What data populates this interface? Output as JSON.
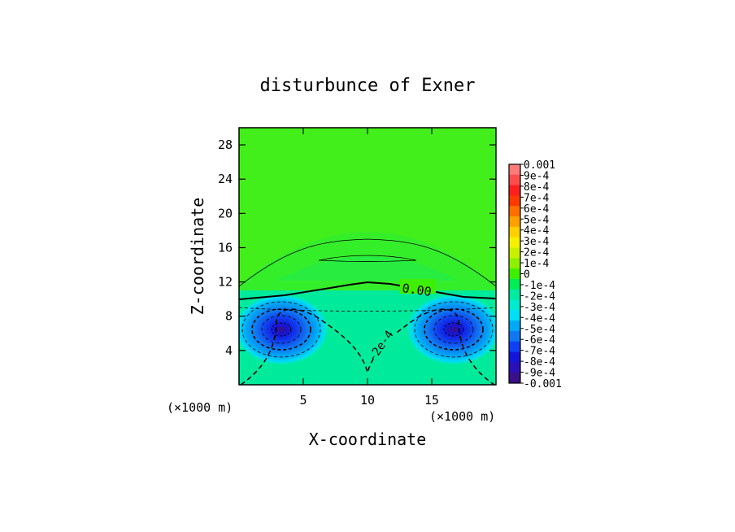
{
  "chart_data": {
    "type": "heatmap",
    "title": "disturbunce of Exner",
    "xlabel": "X-coordinate",
    "ylabel": "Z-coordinate",
    "x_unit": "(×1000 m)",
    "z_unit": "(×1000 m)",
    "xlim": [
      0,
      20
    ],
    "ylim": [
      0,
      30
    ],
    "x_ticks": [
      5,
      10,
      15
    ],
    "y_ticks": [
      4,
      8,
      12,
      16,
      20,
      24,
      28
    ],
    "colorbar": {
      "range": [
        -0.001,
        0.001
      ],
      "labels": [
        "0.001",
        "9e-4",
        "8e-4",
        "7e-4",
        "6e-4",
        "5e-4",
        "4e-4",
        "3e-4",
        "2e-4",
        "1e-4",
        "0",
        "-1e-4",
        "-2e-4",
        "-3e-4",
        "-4e-4",
        "-5e-4",
        "-6e-4",
        "-7e-4",
        "-8e-4",
        "-9e-4",
        "-0.001"
      ],
      "colors": [
        "#ff7a7a",
        "#ff4d4d",
        "#ff1f1f",
        "#ff3a00",
        "#ff6e00",
        "#ffa000",
        "#ffd000",
        "#f5f000",
        "#c8f000",
        "#8ef000",
        "#3ef000",
        "#00ed55",
        "#00eaa0",
        "#00ead0",
        "#00ddf5",
        "#00a8f5",
        "#1078f0",
        "#1040f0",
        "#1515d8",
        "#2a10b8",
        "#3a0f8a"
      ]
    },
    "contour_labels": [
      "0.00",
      "-2e-4"
    ],
    "features": [
      {
        "kind": "minimum",
        "x": 3.3,
        "z": 6.5,
        "value": -0.0007
      },
      {
        "kind": "minimum",
        "x": 16.7,
        "z": 6.5,
        "value": -0.0007
      }
    ]
  }
}
